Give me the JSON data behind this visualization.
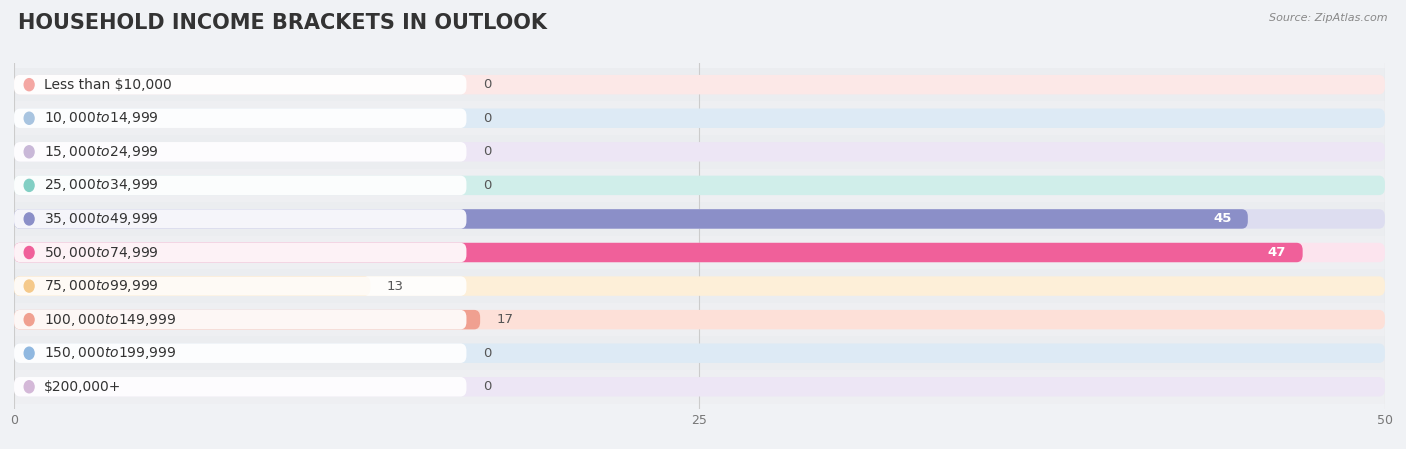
{
  "title": "HOUSEHOLD INCOME BRACKETS IN OUTLOOK",
  "source": "Source: ZipAtlas.com",
  "categories": [
    "Less than $10,000",
    "$10,000 to $14,999",
    "$15,000 to $24,999",
    "$25,000 to $34,999",
    "$35,000 to $49,999",
    "$50,000 to $74,999",
    "$75,000 to $99,999",
    "$100,000 to $149,999",
    "$150,000 to $199,999",
    "$200,000+"
  ],
  "values": [
    0,
    0,
    0,
    0,
    45,
    47,
    13,
    17,
    0,
    0
  ],
  "bar_colors": [
    "#f4a7a3",
    "#a8c4e0",
    "#c9b8d8",
    "#82cfc4",
    "#8b8fc8",
    "#f0609a",
    "#f5c98a",
    "#f0a090",
    "#90b8e0",
    "#d4b8d8"
  ],
  "bar_bg_colors": [
    "#fce8e7",
    "#ddeaf5",
    "#ede6f5",
    "#d0eeea",
    "#ddddf0",
    "#fce4ee",
    "#fdefd8",
    "#fde0d8",
    "#ddeaf5",
    "#ede6f5"
  ],
  "xlim": [
    0,
    50
  ],
  "xticks": [
    0,
    25,
    50
  ],
  "fig_bg": "#f0f2f5",
  "title_fontsize": 15,
  "label_fontsize": 10,
  "value_fontsize": 9.5
}
